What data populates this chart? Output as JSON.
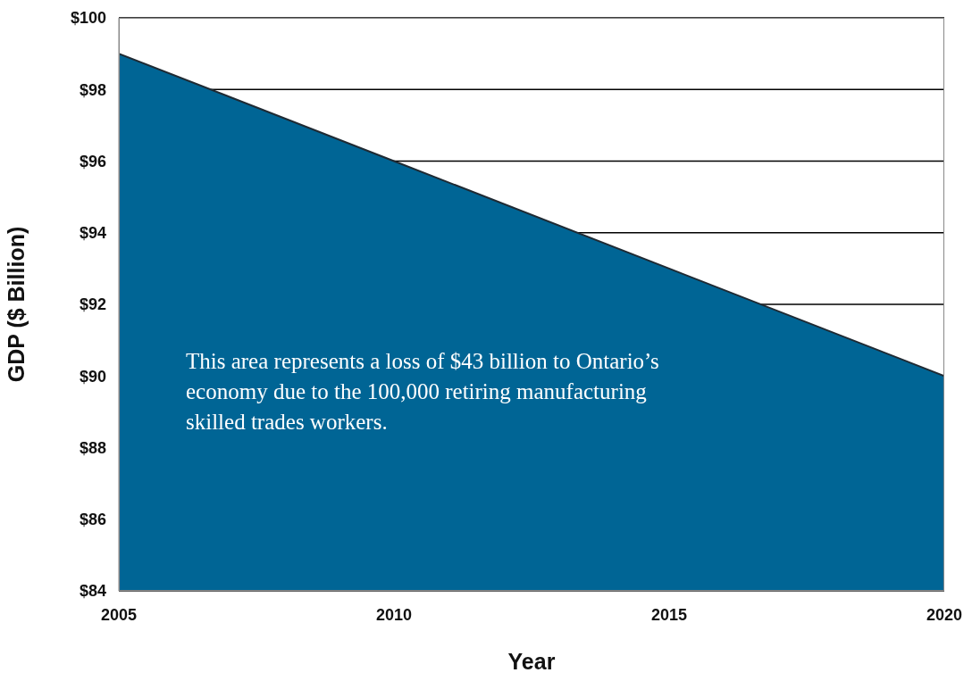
{
  "chart_data": {
    "type": "area",
    "xlabel": "Year",
    "ylabel": "GDP ($ Billion)",
    "x": [
      2005,
      2010,
      2015,
      2020
    ],
    "values": [
      99,
      96,
      93,
      90
    ],
    "color": "#006595",
    "xlim": [
      2005,
      2020
    ],
    "xticks": [
      2005,
      2010,
      2015,
      2020
    ],
    "ylim": [
      84,
      100
    ],
    "yticks": [
      {
        "value": 84,
        "label": "$84"
      },
      {
        "value": 86,
        "label": "$86"
      },
      {
        "value": 88,
        "label": "$88"
      },
      {
        "value": 90,
        "label": "$90"
      },
      {
        "value": 92,
        "label": "$92"
      },
      {
        "value": 94,
        "label": "$94"
      },
      {
        "value": 96,
        "label": "$96"
      },
      {
        "value": 98,
        "label": "$98"
      },
      {
        "value": 100,
        "label": "$100"
      }
    ],
    "grid": "y",
    "annotations": [
      "This area represents a loss of $43 billion to Ontario’s economy due to the 100,000 retiring manufacturing skilled trades workers."
    ]
  }
}
